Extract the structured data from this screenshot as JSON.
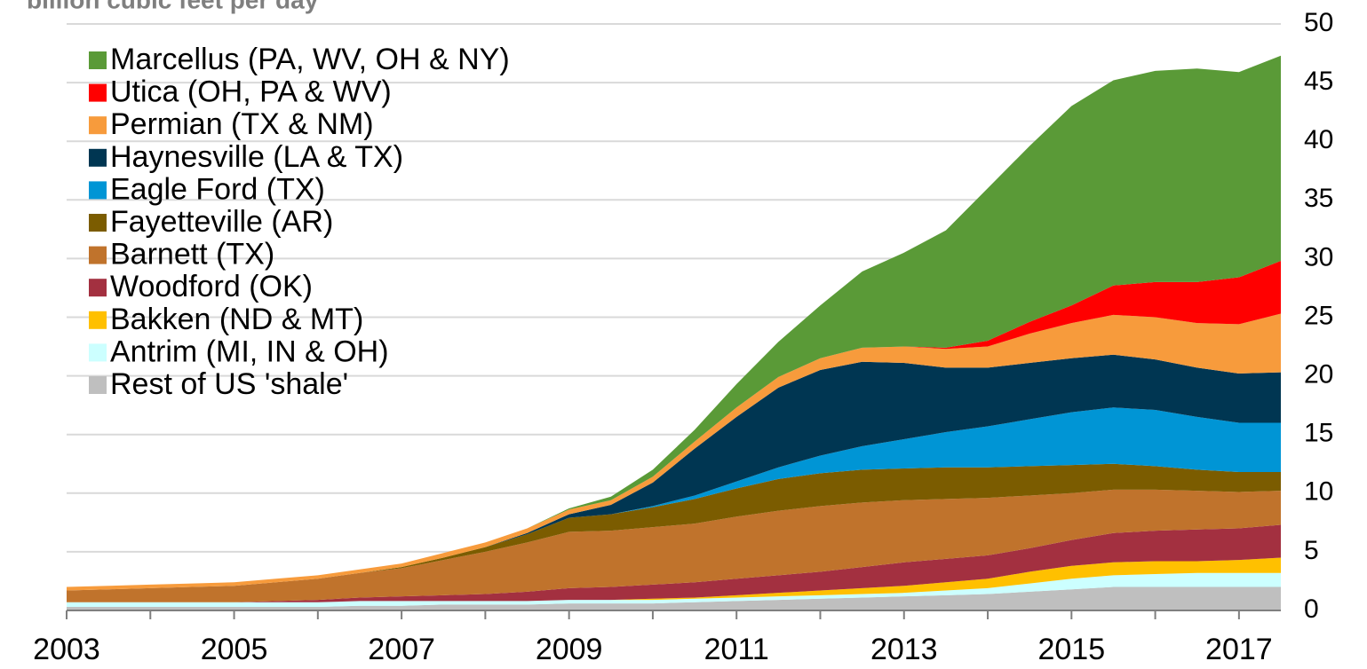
{
  "chart_data": {
    "type": "stacked_area",
    "subtitle": "billion cubic feet per day",
    "x": [
      2003,
      2003.5,
      2004,
      2004.5,
      2005,
      2005.5,
      2006,
      2006.5,
      2007,
      2007.5,
      2008,
      2008.5,
      2009,
      2009.5,
      2010,
      2010.5,
      2011,
      2011.5,
      2012,
      2012.5,
      2013,
      2013.5,
      2014,
      2014.5,
      2015,
      2015.5,
      2016,
      2016.5,
      2017,
      2017.5
    ],
    "xlim": [
      2003,
      2017.5
    ],
    "xticks": [
      2003,
      2005,
      2007,
      2009,
      2011,
      2013,
      2015,
      2017
    ],
    "xminorticks": [
      2004,
      2006,
      2008,
      2010,
      2012,
      2014,
      2016
    ],
    "ylim": [
      0,
      50
    ],
    "yticks": [
      0,
      5,
      10,
      15,
      20,
      25,
      30,
      35,
      40,
      45,
      50
    ],
    "grid": true,
    "legend": "upper-left",
    "series": [
      {
        "name": "Marcellus (PA, WV, OH & NY)",
        "color": "#5a9a37",
        "values": [
          0,
          0,
          0,
          0,
          0,
          0,
          0,
          0,
          0,
          0,
          0,
          0,
          0.1,
          0.3,
          0.6,
          1.0,
          2.0,
          3.0,
          4.5,
          6.5,
          8,
          10,
          13,
          15,
          17,
          17.5,
          18,
          18.2,
          17.5,
          17.5
        ]
      },
      {
        "name": "Utica (OH, PA & WV)",
        "color": "#ff0000",
        "values": [
          0,
          0,
          0,
          0,
          0,
          0,
          0,
          0,
          0,
          0,
          0,
          0,
          0,
          0,
          0,
          0,
          0,
          0,
          0,
          0,
          0,
          0.1,
          0.5,
          1.0,
          1.5,
          2.5,
          3.0,
          3.5,
          4.0,
          4.5
        ]
      },
      {
        "name": "Permian (TX & NM)",
        "color": "#f79b3c",
        "values": [
          0.3,
          0.3,
          0.3,
          0.3,
          0.3,
          0.3,
          0.3,
          0.3,
          0.3,
          0.4,
          0.4,
          0.4,
          0.4,
          0.4,
          0.5,
          0.6,
          0.8,
          0.9,
          1.0,
          1.2,
          1.4,
          1.6,
          1.8,
          2.5,
          3.0,
          3.4,
          3.6,
          3.8,
          4.2,
          5.0
        ]
      },
      {
        "name": "Haynesville (LA & TX)",
        "color": "#003652",
        "values": [
          0,
          0,
          0,
          0,
          0,
          0,
          0,
          0,
          0,
          0,
          0,
          0.1,
          0.3,
          0.8,
          2.0,
          4.0,
          5.5,
          6.8,
          7.3,
          7.2,
          6.5,
          5.5,
          5.0,
          4.8,
          4.6,
          4.5,
          4.3,
          4.2,
          4.2,
          4.3
        ]
      },
      {
        "name": "Eagle Ford (TX)",
        "color": "#0095d5",
        "values": [
          0,
          0,
          0,
          0,
          0,
          0,
          0,
          0,
          0,
          0,
          0,
          0,
          0,
          0,
          0.1,
          0.3,
          0.6,
          1.0,
          1.5,
          2.0,
          2.5,
          3.0,
          3.5,
          4.0,
          4.5,
          4.8,
          4.8,
          4.5,
          4.2,
          4.2
        ]
      },
      {
        "name": "Fayetteville (AR)",
        "color": "#7b5c00",
        "values": [
          0,
          0,
          0,
          0,
          0,
          0,
          0,
          0,
          0.1,
          0.2,
          0.4,
          0.7,
          1.2,
          1.4,
          1.7,
          2.1,
          2.4,
          2.7,
          2.8,
          2.8,
          2.7,
          2.7,
          2.6,
          2.5,
          2.4,
          2.2,
          2.0,
          1.8,
          1.7,
          1.6
        ]
      },
      {
        "name": "Barnett (TX)",
        "color": "#c0732c",
        "values": [
          1.0,
          1.1,
          1.2,
          1.3,
          1.4,
          1.6,
          1.8,
          2.1,
          2.4,
          3.0,
          3.6,
          4.2,
          4.8,
          4.8,
          4.9,
          5.0,
          5.3,
          5.5,
          5.6,
          5.5,
          5.3,
          5.1,
          4.9,
          4.5,
          4.0,
          3.7,
          3.5,
          3.3,
          3.1,
          2.9
        ]
      },
      {
        "name": "Woodford (OK)",
        "color": "#a33040",
        "values": [
          0,
          0,
          0,
          0,
          0,
          0.1,
          0.2,
          0.3,
          0.4,
          0.5,
          0.6,
          0.8,
          1.0,
          1.1,
          1.2,
          1.3,
          1.4,
          1.5,
          1.6,
          1.8,
          2.0,
          2.0,
          2.0,
          2.0,
          2.2,
          2.5,
          2.6,
          2.7,
          2.7,
          2.8
        ]
      },
      {
        "name": "Bakken (ND & MT)",
        "color": "#ffc000",
        "values": [
          0,
          0,
          0,
          0,
          0,
          0,
          0,
          0,
          0,
          0,
          0,
          0,
          0,
          0,
          0.1,
          0.1,
          0.2,
          0.3,
          0.4,
          0.5,
          0.6,
          0.7,
          0.8,
          1.0,
          1.1,
          1.1,
          1.1,
          1.0,
          1.1,
          1.3
        ]
      },
      {
        "name": "Antrim (MI, IN & OH)",
        "color": "#ccffff",
        "values": [
          0.4,
          0.4,
          0.4,
          0.4,
          0.4,
          0.4,
          0.4,
          0.4,
          0.4,
          0.3,
          0.3,
          0.3,
          0.3,
          0.3,
          0.3,
          0.3,
          0.3,
          0.3,
          0.3,
          0.3,
          0.3,
          0.4,
          0.5,
          0.7,
          0.9,
          1.0,
          1.1,
          1.2,
          1.2,
          1.2
        ]
      },
      {
        "name": "Rest of US 'shale'",
        "color": "#bfbfbf",
        "values": [
          0.3,
          0.3,
          0.3,
          0.3,
          0.3,
          0.3,
          0.3,
          0.4,
          0.4,
          0.5,
          0.5,
          0.5,
          0.6,
          0.6,
          0.6,
          0.7,
          0.8,
          0.9,
          1.0,
          1.1,
          1.2,
          1.3,
          1.4,
          1.6,
          1.8,
          2.0,
          2.0,
          2.0,
          2.0,
          2.0
        ]
      }
    ]
  }
}
